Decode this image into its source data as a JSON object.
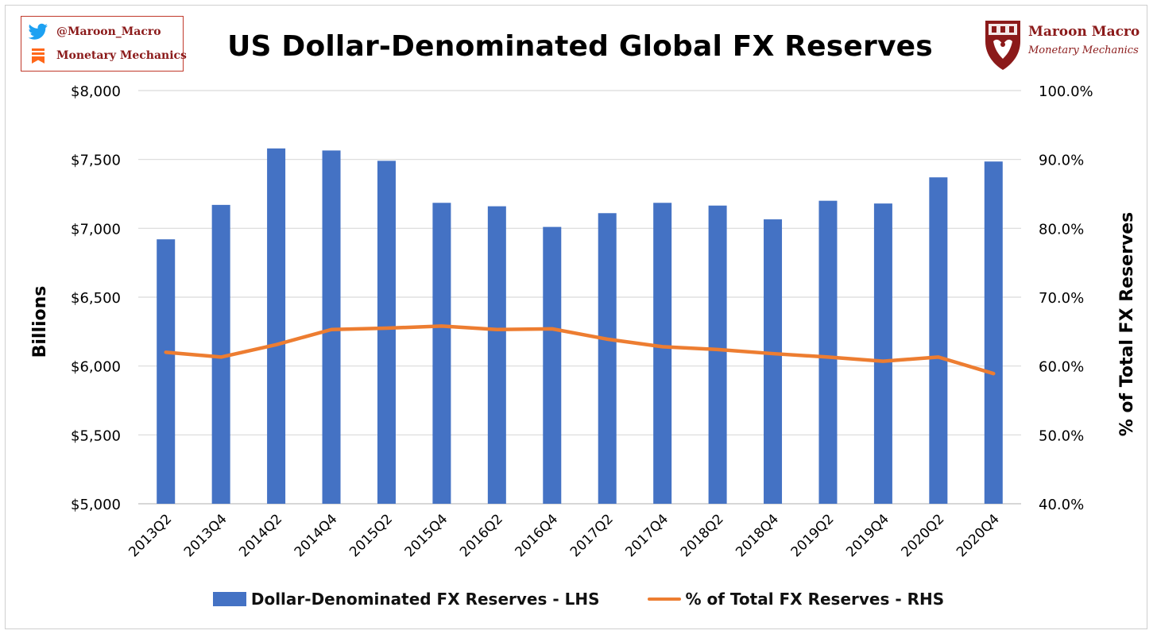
{
  "header": {
    "title": "US Dollar-Denominated Global FX Reserves",
    "badge": {
      "twitter_handle": "@Maroon_Macro",
      "substack_name": "Monetary Mechanics"
    },
    "logo": {
      "name": "Maroon Macro",
      "tagline": "Monetary Mechanics"
    }
  },
  "colors": {
    "bar": "#4472c4",
    "line": "#ed7d31",
    "grid": "#d9d9d9",
    "brand": "#8b1a1a"
  },
  "chart_data": {
    "type": "bar",
    "title": "US Dollar-Denominated Global FX Reserves",
    "categories": [
      "2013Q2",
      "2013Q4",
      "2014Q2",
      "2014Q4",
      "2015Q2",
      "2015Q4",
      "2016Q2",
      "2016Q4",
      "2017Q2",
      "2017Q4",
      "2018Q2",
      "2018Q4",
      "2019Q2",
      "2019Q4",
      "2020Q2",
      "2020Q4"
    ],
    "series": [
      {
        "name": "Dollar-Denominated FX Reserves - LHS",
        "type": "bar",
        "axis": "left",
        "values": [
          6920,
          7170,
          7580,
          7565,
          7490,
          7185,
          7160,
          7010,
          7110,
          7185,
          7165,
          7065,
          7200,
          7180,
          7370,
          7485
        ]
      },
      {
        "name": "% of Total FX Reserves - RHS",
        "type": "line",
        "axis": "right",
        "values": [
          62.0,
          61.3,
          63.1,
          65.3,
          65.5,
          65.8,
          65.3,
          65.4,
          63.9,
          62.8,
          62.4,
          61.8,
          61.3,
          60.7,
          61.3,
          58.9
        ]
      }
    ],
    "ylabel": "Billions",
    "ylabel_right": "% of Total FX Reserves",
    "ylim": [
      5000,
      8000
    ],
    "ylim_right": [
      40,
      100
    ],
    "y_ticks": [
      "$5,000",
      "$5,500",
      "$6,000",
      "$6,500",
      "$7,000",
      "$7,500",
      "$8,000"
    ],
    "y_ticks_right": [
      "40.0%",
      "50.0%",
      "60.0%",
      "70.0%",
      "80.0%",
      "90.0%",
      "100.0%"
    ],
    "grid": true,
    "legend_position": "bottom"
  }
}
